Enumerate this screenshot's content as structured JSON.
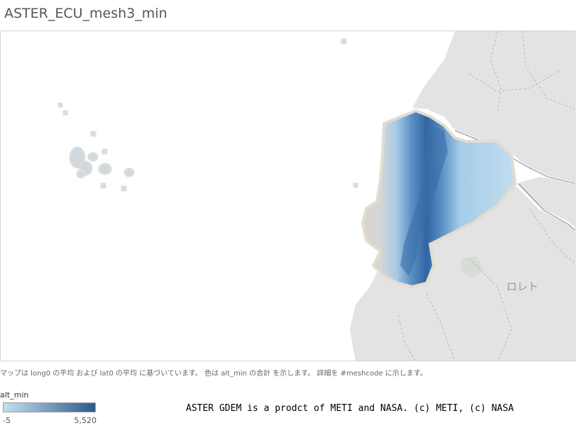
{
  "title": "ASTER_ECU_mesh3_min",
  "map": {
    "place_labels": [
      "ロレト"
    ]
  },
  "caption": "マップは long0 の平均 および lat0 の平均 に基づいています。 色は alt_min の合計 を示します。 詳細を #meshcode に示します。",
  "legend": {
    "title": "alt_min",
    "min_label": "-5",
    "max_label": "5,520",
    "color_low": "#c5dff0",
    "color_high": "#2a5a8a"
  },
  "credit": "ASTER GDEM is a prodct of METI and NASA. (c) METI, (c) NASA",
  "colors": {
    "land": "#e3e3e3",
    "border": "#ffffff",
    "lowland": "#d8d4cc"
  }
}
